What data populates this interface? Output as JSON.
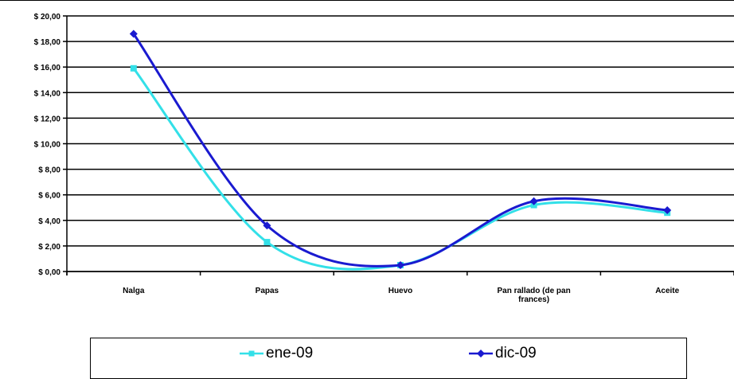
{
  "chart_data": {
    "type": "line",
    "categories": [
      "Nalga",
      "Papas",
      "Huevo",
      "Pan rallado (de pan frances)",
      "Aceite"
    ],
    "category_lines": [
      [
        "Nalga"
      ],
      [
        "Papas"
      ],
      [
        "Huevo"
      ],
      [
        "Pan rallado (de pan",
        "frances)"
      ],
      [
        "Aceite"
      ]
    ],
    "yticks": [
      "$ 0,00",
      "$ 2,00",
      "$ 4,00",
      "$ 6,00",
      "$ 8,00",
      "$ 10,00",
      "$ 12,00",
      "$ 14,00",
      "$ 16,00",
      "$ 18,00",
      "$ 20,00"
    ],
    "ylim": [
      0,
      20
    ],
    "grid": true,
    "smooth": true,
    "legend_position": "bottom",
    "series": [
      {
        "name": "ene-09",
        "values": [
          15.9,
          2.3,
          0.5,
          5.2,
          4.6
        ],
        "color": "#33e0e8",
        "marker": "square"
      },
      {
        "name": "dic-09",
        "values": [
          18.6,
          3.6,
          0.5,
          5.5,
          4.8
        ],
        "color": "#1a1ad0",
        "marker": "diamond"
      }
    ]
  }
}
